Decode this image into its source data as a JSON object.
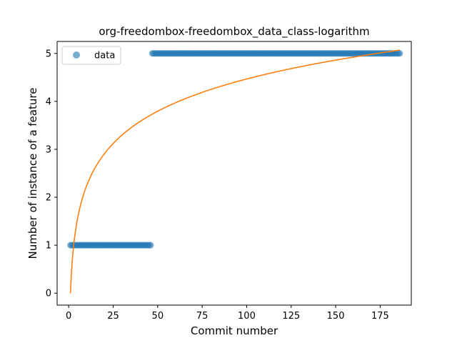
{
  "chart_data": {
    "type": "scatter",
    "title": "org-freedombox-freedombox_data_class-logarithm",
    "xlabel": "Commit number",
    "ylabel": "Number of instance of a feature",
    "xlim": [
      -6.5,
      192.5
    ],
    "ylim": [
      -0.25,
      5.25
    ],
    "xticks": [
      0,
      25,
      50,
      75,
      100,
      125,
      150,
      175
    ],
    "yticks": [
      0,
      1,
      2,
      3,
      4,
      5
    ],
    "xtick_labels": [
      "0",
      "25",
      "50",
      "75",
      "100",
      "125",
      "150",
      "175"
    ],
    "ytick_labels": [
      "0",
      "1",
      "2",
      "3",
      "4",
      "5"
    ],
    "grid": false,
    "legend": {
      "position": "top-left",
      "entries": [
        "data"
      ]
    },
    "series": [
      {
        "name": "data",
        "kind": "scatter",
        "color": "#1f77b4",
        "segments": [
          {
            "x_start": 1,
            "x_end": 46,
            "y": 1
          },
          {
            "x_start": 47,
            "x_end": 186,
            "y": 5
          }
        ]
      },
      {
        "kind": "line",
        "color": "#ff7f0e",
        "model": "logarithmic",
        "a": 0.97,
        "b": 0,
        "x_range": [
          1,
          186
        ]
      }
    ]
  }
}
